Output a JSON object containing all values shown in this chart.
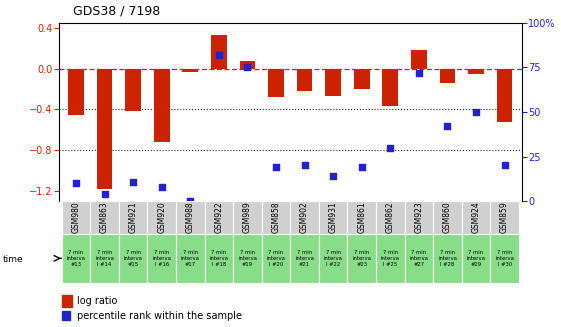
{
  "title": "GDS38 / 7198",
  "samples": [
    "GSM980",
    "GSM863",
    "GSM921",
    "GSM920",
    "GSM988",
    "GSM922",
    "GSM989",
    "GSM858",
    "GSM902",
    "GSM931",
    "GSM861",
    "GSM862",
    "GSM923",
    "GSM860",
    "GSM924",
    "GSM859"
  ],
  "time_labels": [
    "7 min\ninterva\n#13",
    "7 min\ninterva\nl #14",
    "7 min\ninterva\n#15",
    "7 min\ninterva\nl #16",
    "7 min\ninterva\n#17",
    "7 min\ninterva\nl #18",
    "7 min\ninterva\n#19",
    "7 min\ninterva\nl #20",
    "7 min\ninterva\n#21",
    "7 min\ninterva\nl #22",
    "7 min\ninterva\n#23",
    "7 min\ninterva\nl #25",
    "7 min\ninterva\n#27",
    "7 min\ninterva\nl #28",
    "7 min\ninterva\n#29",
    "7 min\ninterva\nl #30"
  ],
  "log_ratio": [
    -0.45,
    -1.18,
    -0.42,
    -0.72,
    -0.03,
    0.33,
    0.08,
    -0.28,
    -0.22,
    -0.27,
    -0.2,
    -0.37,
    0.18,
    -0.14,
    -0.05,
    -0.52
  ],
  "percentile_rank": [
    10,
    4,
    11,
    8,
    0,
    82,
    75,
    19,
    20,
    14,
    19,
    30,
    72,
    42,
    50,
    20
  ],
  "ylim_left": [
    -1.3,
    0.45
  ],
  "ylim_right": [
    0,
    100
  ],
  "bar_color": "#cc2200",
  "dot_color": "#2222cc",
  "bg_color_gray": "#d0d0d0",
  "bg_color_green": "#88dd88",
  "dashed_line_color": "#cc2200",
  "dotted_line_color": "#222222"
}
